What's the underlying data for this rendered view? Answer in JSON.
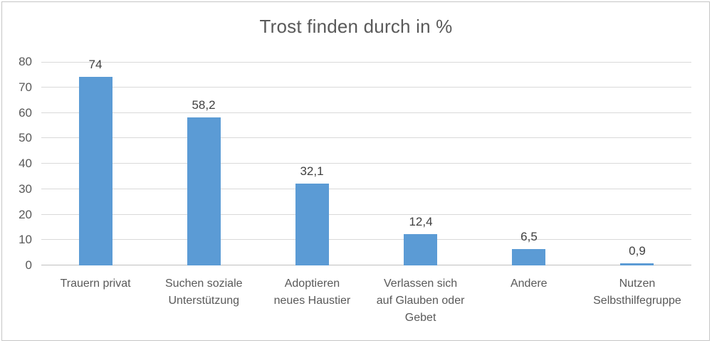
{
  "chart_data": {
    "type": "bar",
    "title": "Trost finden durch in %",
    "categories": [
      "Trauern privat",
      "Suchen soziale Unterstützung",
      "Adoptieren neues Haustier",
      "Verlassen sich auf Glauben oder Gebet",
      "Andere",
      "Nutzen Selbsthilfegruppe"
    ],
    "category_label_lines": [
      [
        "Trauern privat"
      ],
      [
        "Suchen soziale",
        "Unterstützung"
      ],
      [
        "Adoptieren",
        "neues Haustier"
      ],
      [
        "Verlassen sich",
        "auf Glauben oder",
        "Gebet"
      ],
      [
        "Andere"
      ],
      [
        "Nutzen",
        "Selbsthilfegruppe"
      ]
    ],
    "values": [
      74,
      58.2,
      32.1,
      12.4,
      6.5,
      0.9
    ],
    "value_labels": [
      "74",
      "58,2",
      "32,1",
      "12,4",
      "6,5",
      "0,9"
    ],
    "xlabel": "",
    "ylabel": "",
    "ylim": [
      0,
      80
    ],
    "ytick_step": 10,
    "ytick_labels": [
      "0",
      "10",
      "20",
      "30",
      "40",
      "50",
      "60",
      "70",
      "80"
    ],
    "grid": true,
    "legend": false,
    "bar_color": "#5b9bd5",
    "gridline_color": "#d9d9d9",
    "axis_text_color": "#595959",
    "value_label_color": "#404040"
  }
}
